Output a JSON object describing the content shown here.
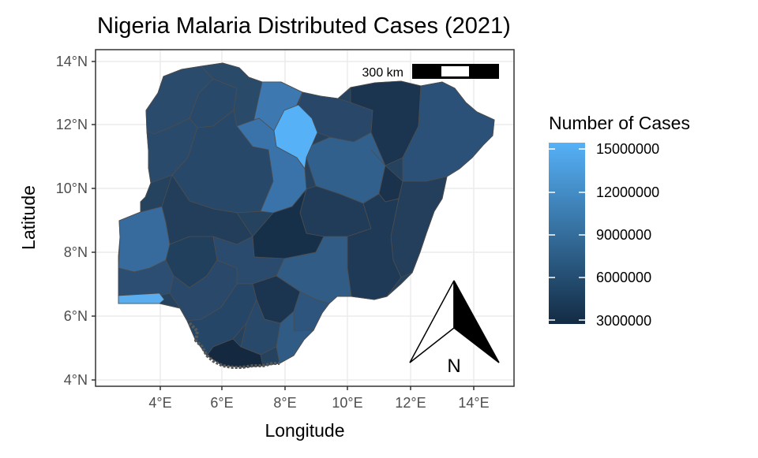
{
  "title": "Nigeria Malaria Distributed Cases (2021)",
  "axes": {
    "xlabel": "Longitude",
    "ylabel": "Latitude",
    "x_ticks": [
      "4°E",
      "6°E",
      "8°E",
      "10°E",
      "12°E",
      "14°E"
    ],
    "y_ticks": [
      "4°N",
      "6°N",
      "8°N",
      "10°N",
      "12°N",
      "14°N"
    ]
  },
  "scale_bar": {
    "label": "300 km"
  },
  "north_arrow": {
    "label": "N"
  },
  "legend": {
    "title": "Number of Cases",
    "ticks": [
      "15000000",
      "12000000",
      "9000000",
      "6000000",
      "3000000"
    ],
    "min": 3000000,
    "max": 15000000,
    "color_low": "#132b43",
    "color_high": "#56b1f7"
  },
  "colors": {
    "panel_border": "#333333",
    "grid": "#ebebeb",
    "state_border": "#4d4d4d",
    "coast": "#595959",
    "highest_state": "#56b1f7",
    "lagos_coast": "#5aaef0"
  }
}
